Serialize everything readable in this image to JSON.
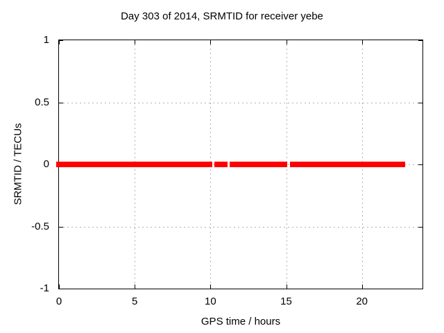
{
  "chart_data": {
    "type": "scatter",
    "title": "Day 303 of 2014, SRMTID for receiver yebe",
    "xlabel": "GPS time / hours",
    "ylabel": "SRMTID / TECUs",
    "xlim": [
      0,
      24
    ],
    "ylim": [
      -1,
      1
    ],
    "xticks": [
      {
        "value": 0,
        "label": "0"
      },
      {
        "value": 5,
        "label": "5"
      },
      {
        "value": 10,
        "label": "10"
      },
      {
        "value": 15,
        "label": "15"
      },
      {
        "value": 20,
        "label": "20"
      }
    ],
    "yticks": [
      {
        "value": 1,
        "label": "1"
      },
      {
        "value": 0.5,
        "label": "0.5"
      },
      {
        "value": 0,
        "label": "0"
      },
      {
        "value": -0.5,
        "label": "-0.5"
      },
      {
        "value": -1,
        "label": "-1"
      }
    ],
    "grid": {
      "visible": true,
      "style": "dashed",
      "color": "#b0b0b0"
    },
    "legend": "none",
    "colors": {
      "background": "#ffffff",
      "border": "#000000",
      "text": "#000000",
      "series": "#ff0000"
    },
    "series": [
      {
        "name": "SRMTID",
        "color": "#ff0000",
        "y_value": 0,
        "marker": "filled-square",
        "marker_size_px": 8,
        "note": "flat band of points at SRMTID = 0 TECUs with short data gaps",
        "segments_x_hours": [
          [
            0,
            10.1
          ],
          [
            10.24,
            11.11
          ],
          [
            11.25,
            15.09
          ],
          [
            15.23,
            22.68
          ]
        ]
      }
    ]
  }
}
